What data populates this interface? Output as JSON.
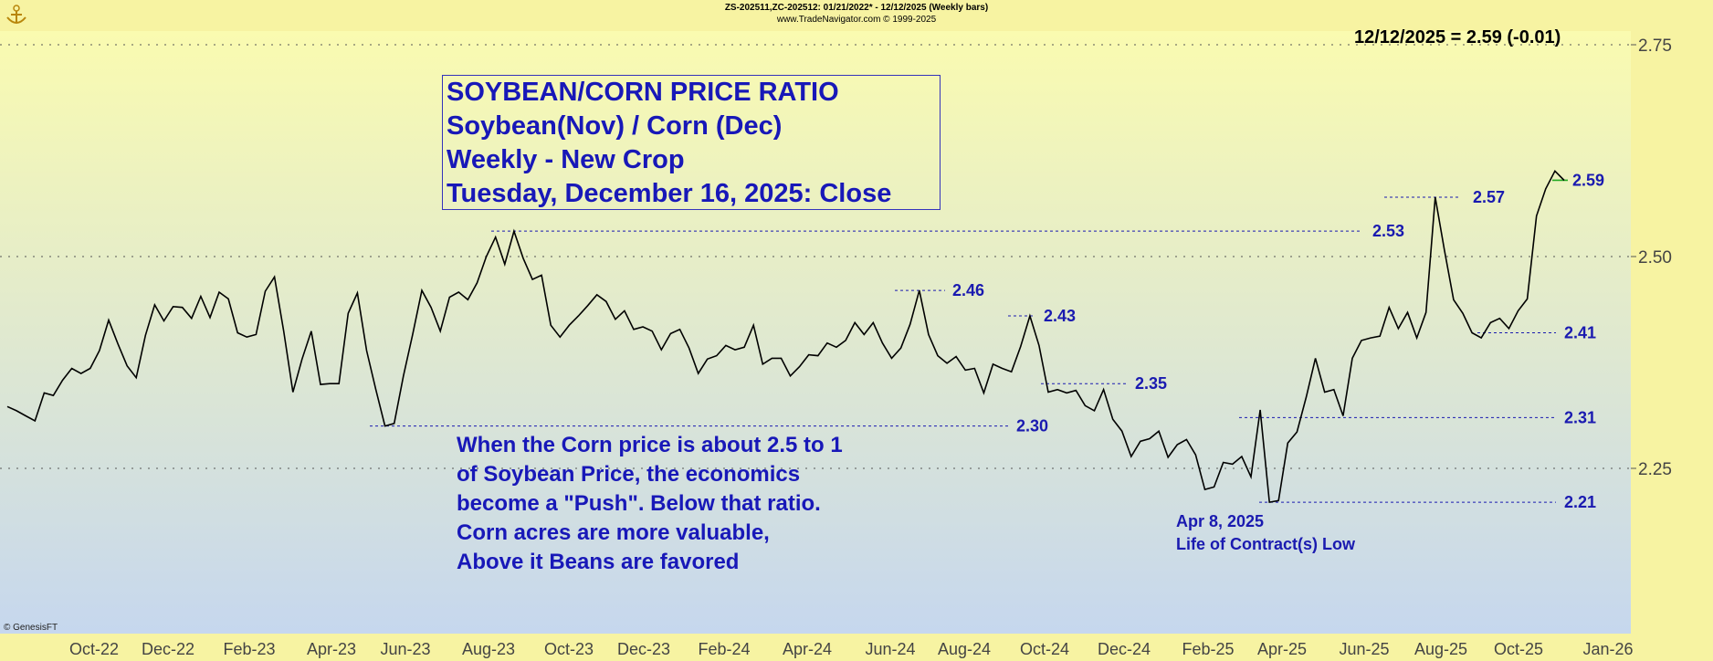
{
  "header": {
    "line1": "ZS-202511,ZC-202512:  01/21/2022* - 12/12/2025  (Weekly bars)",
    "line2": "www.TradeNavigator.com © 1999-2025"
  },
  "last_value_label": "12/12/2025 = 2.59 (-0.01)",
  "title_box": [
    "SOYBEAN/CORN PRICE RATIO",
    "Soybean(Nov) / Corn (Dec)",
    "Weekly - New Crop",
    "Tuesday, December 16, 2025: Close"
  ],
  "note_lines": [
    "When the Corn price is about 2.5 to 1",
    "of Soybean Price, the economics",
    "become a \"Push\".  Below that ratio.",
    "Corn acres are more valuable,",
    "Above it Beans are favored"
  ],
  "copyright": "© GenesisFT",
  "colors": {
    "background_top": "#f7f3a2",
    "background_bottom": "#c8daf0",
    "line": "#000000",
    "annotation": "#1a1ab0",
    "last_price": "#22aa22"
  },
  "chart_data": {
    "type": "line",
    "x_ticks": [
      "Oct-22",
      "Dec-22",
      "Feb-23",
      "Apr-23",
      "Jun-23",
      "Aug-23",
      "Oct-23",
      "Dec-23",
      "Feb-24",
      "Apr-24",
      "Jun-24",
      "Aug-24",
      "Oct-24",
      "Dec-24",
      "Feb-25",
      "Apr-25",
      "Jun-25",
      "Aug-25",
      "Oct-25",
      "Jan-26"
    ],
    "y_ticks": [
      "2.75",
      "2.50",
      "2.25"
    ],
    "ylim": [
      2.07,
      2.77
    ],
    "grid": "horizontal dotted at 2.25, 2.50, 2.75",
    "x_range_weeks": [
      0,
      151
    ],
    "series": [
      {
        "values": [
          2.323,
          2.318,
          2.312,
          2.306,
          2.339,
          2.336,
          2.354,
          2.368,
          2.362,
          2.368,
          2.389,
          2.425,
          2.397,
          2.371,
          2.357,
          2.407,
          2.443,
          2.424,
          2.441,
          2.44,
          2.427,
          2.453,
          2.428,
          2.458,
          2.45,
          2.41,
          2.405,
          2.408,
          2.459,
          2.476,
          2.412,
          2.34,
          2.379,
          2.412,
          2.349,
          2.35,
          2.35,
          2.433,
          2.457,
          2.389,
          2.343,
          2.3,
          2.303,
          2.359,
          2.408,
          2.46,
          2.44,
          2.412,
          2.452,
          2.458,
          2.449,
          2.469,
          2.5,
          2.523,
          2.491,
          2.53,
          2.498,
          2.473,
          2.478,
          2.419,
          2.405,
          2.419,
          2.43,
          2.442,
          2.455,
          2.447,
          2.426,
          2.436,
          2.414,
          2.417,
          2.412,
          2.39,
          2.409,
          2.414,
          2.392,
          2.362,
          2.379,
          2.383,
          2.395,
          2.39,
          2.393,
          2.419,
          2.373,
          2.38,
          2.38,
          2.359,
          2.37,
          2.384,
          2.383,
          2.398,
          2.393,
          2.401,
          2.422,
          2.408,
          2.422,
          2.398,
          2.38,
          2.392,
          2.42,
          2.46,
          2.408,
          2.383,
          2.374,
          2.382,
          2.366,
          2.368,
          2.339,
          2.373,
          2.368,
          2.364,
          2.394,
          2.43,
          2.395,
          2.34,
          2.343,
          2.339,
          2.342,
          2.324,
          2.318,
          2.343,
          2.308,
          2.294,
          2.264,
          2.282,
          2.285,
          2.294,
          2.263,
          2.278,
          2.284,
          2.266,
          2.225,
          2.228,
          2.257,
          2.255,
          2.264,
          2.24,
          2.319,
          2.21,
          2.212,
          2.28,
          2.293,
          2.334,
          2.38,
          2.34,
          2.343,
          2.312,
          2.38,
          2.401,
          2.404,
          2.406,
          2.44,
          2.415,
          2.434,
          2.404,
          2.434,
          2.57,
          2.508,
          2.449,
          2.433,
          2.41,
          2.404,
          2.422,
          2.427,
          2.415,
          2.436,
          2.45,
          2.548,
          2.58,
          2.601,
          2.59
        ]
      }
    ],
    "annotations": [
      {
        "label": "2.53",
        "value": 2.53
      },
      {
        "label": "2.46",
        "value": 2.46
      },
      {
        "label": "2.43",
        "value": 2.43
      },
      {
        "label": "2.35",
        "value": 2.35
      },
      {
        "label": "2.30",
        "value": 2.3
      },
      {
        "label": "2.57",
        "value": 2.57
      },
      {
        "label": "2.41",
        "value": 2.41
      },
      {
        "label": "2.31",
        "value": 2.31
      },
      {
        "label": "2.21",
        "value": 2.21
      },
      {
        "label": "2.59",
        "value": 2.59,
        "color": "#22aa22"
      }
    ],
    "low_note": [
      "Apr 8, 2025",
      "Life of Contract(s) Low"
    ]
  }
}
